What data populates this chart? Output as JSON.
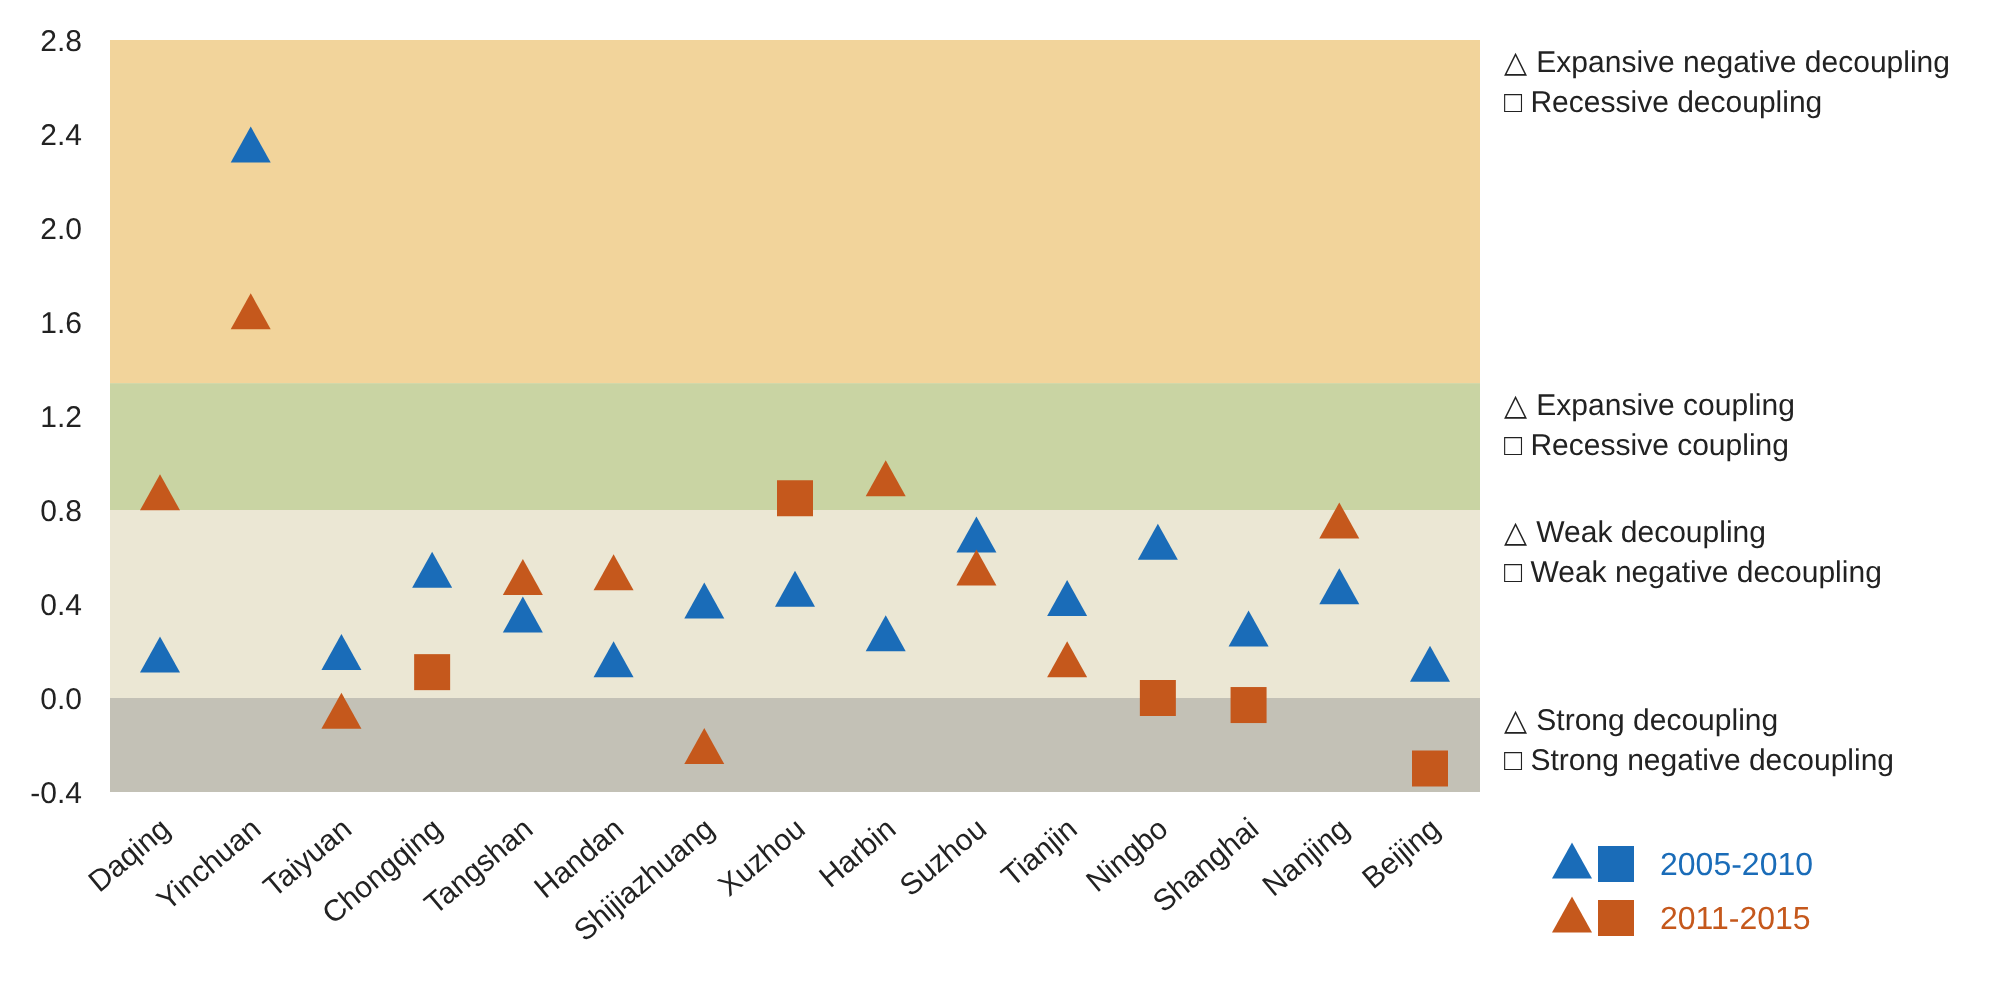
{
  "chart_data": {
    "type": "scatter",
    "categories": [
      "Daqing",
      "Yinchuan",
      "Taiyuan",
      "Chongqing",
      "Tangshan",
      "Handan",
      "Shijiazhuang",
      "Xuzhou",
      "Harbin",
      "Suzhou",
      "Tianjin",
      "Ningbo",
      "Shanghai",
      "Nanjing",
      "Beijing"
    ],
    "series": [
      {
        "name": "2005-2010",
        "color": "#1a6cb8",
        "marker": "triangle",
        "values": [
          0.17,
          2.34,
          0.18,
          0.53,
          0.34,
          0.15,
          0.4,
          0.45,
          0.26,
          0.68,
          0.41,
          0.65,
          0.28,
          0.46,
          0.13
        ]
      },
      {
        "color": "#1a6cb8",
        "marker": "square",
        "values": [
          null,
          null,
          null,
          null,
          null,
          null,
          null,
          null,
          null,
          null,
          null,
          null,
          null,
          null,
          null
        ]
      },
      {
        "name": "2011-2015",
        "color": "#c5581c",
        "marker": "triangle",
        "values": [
          0.86,
          1.63,
          -0.07,
          null,
          0.5,
          0.52,
          -0.22,
          null,
          0.92,
          0.54,
          0.15,
          null,
          null,
          0.74,
          null
        ]
      },
      {
        "color": "#c5581c",
        "marker": "square",
        "values": [
          null,
          null,
          null,
          0.11,
          null,
          null,
          null,
          0.85,
          null,
          null,
          null,
          0.0,
          -0.03,
          null,
          -0.3
        ]
      }
    ],
    "ylim": [
      -0.4,
      2.8
    ],
    "yticks": [
      -0.4,
      {
        "value": 0,
        "label": "0.0"
      },
      0.4,
      0.8,
      1.2,
      1.6,
      {
        "value": 2,
        "label": "2.0"
      },
      2.4,
      2.8
    ],
    "bands": [
      {
        "axis": "y",
        "from": -0.4,
        "to": 0,
        "color": "#c3c1b6",
        "label": "△ Strong decoupling\n□ Strong negative decoupling"
      },
      {
        "axis": "y",
        "from": 0,
        "to": 0.8,
        "color": "#ebe7d4",
        "label": "△ Weak decoupling\n□ Weak negative decoupling"
      },
      {
        "axis": "y",
        "from": 0.8,
        "to": 1.34,
        "color": "#c9d4a3",
        "label": "△ Expansive coupling\n□ Recessive coupling"
      },
      {
        "axis": "y",
        "from": 1.34,
        "to": 2.8,
        "color": "#f2d49b",
        "label": "△ Expansive negative decoupling\n□ Recessive decoupling"
      }
    ],
    "grid": false,
    "legend": "bottom right"
  }
}
